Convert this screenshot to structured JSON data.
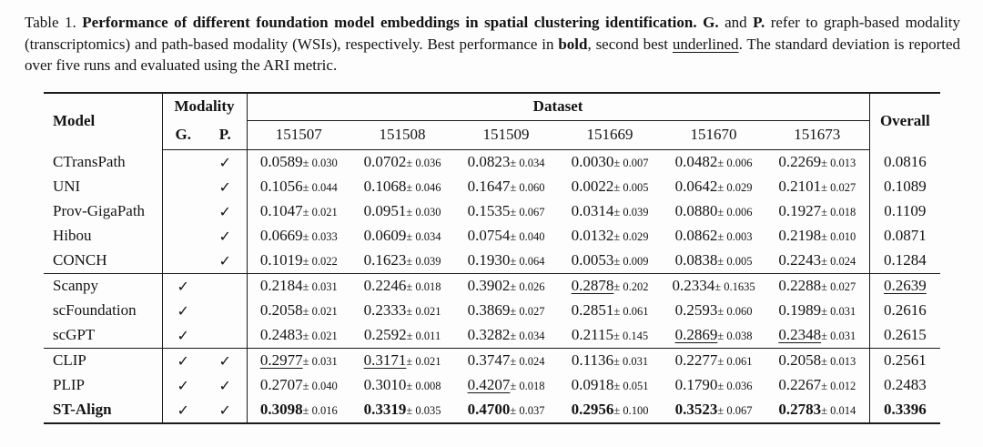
{
  "page": {
    "background": "#fdfdfd",
    "text_color": "#141414",
    "rule_color": "#1a1a1a"
  },
  "caption": {
    "label": "Table 1. ",
    "title": "Performance of different foundation model embeddings in spatial clustering identification. ",
    "g_abbrev": "G.",
    "and_word": " and ",
    "p_abbrev": "P.",
    "body1": " refer to graph-based modality (transcriptomics) and path-based modality (WSIs), respectively. Best performance in ",
    "bold_word": "bold",
    "body2": ", second best ",
    "underlined_word": "underlined",
    "body3": ". The standard deviation is reported over five runs and evaluated using the ARI metric."
  },
  "table": {
    "plus_minus": "±",
    "checkmark": "✓",
    "headers": {
      "model": "Model",
      "modality": "Modality",
      "g": "G.",
      "p": "P.",
      "dataset": "Dataset",
      "dataset_ids": [
        "151507",
        "151508",
        "151509",
        "151669",
        "151670",
        "151673"
      ],
      "overall": "Overall"
    },
    "groups": [
      {
        "name": "path-based-models",
        "rows": [
          {
            "model": "CTransPath",
            "bold": false,
            "g": false,
            "p": true,
            "values": [
              {
                "v": "0.0589",
                "sd": "0.030",
                "style": "n"
              },
              {
                "v": "0.0702",
                "sd": "0.036",
                "style": "n"
              },
              {
                "v": "0.0823",
                "sd": "0.034",
                "style": "n"
              },
              {
                "v": "0.0030",
                "sd": "0.007",
                "style": "n"
              },
              {
                "v": "0.0482",
                "sd": "0.006",
                "style": "n"
              },
              {
                "v": "0.2269",
                "sd": "0.013",
                "style": "n"
              }
            ],
            "overall": {
              "v": "0.0816",
              "style": "n"
            }
          },
          {
            "model": "UNI",
            "bold": false,
            "g": false,
            "p": true,
            "values": [
              {
                "v": "0.1056",
                "sd": "0.044",
                "style": "n"
              },
              {
                "v": "0.1068",
                "sd": "0.046",
                "style": "n"
              },
              {
                "v": "0.1647",
                "sd": "0.060",
                "style": "n"
              },
              {
                "v": "0.0022",
                "sd": "0.005",
                "style": "n"
              },
              {
                "v": "0.0642",
                "sd": "0.029",
                "style": "n"
              },
              {
                "v": "0.2101",
                "sd": "0.027",
                "style": "n"
              }
            ],
            "overall": {
              "v": "0.1089",
              "style": "n"
            }
          },
          {
            "model": "Prov-GigaPath",
            "bold": false,
            "g": false,
            "p": true,
            "values": [
              {
                "v": "0.1047",
                "sd": "0.021",
                "style": "n"
              },
              {
                "v": "0.0951",
                "sd": "0.030",
                "style": "n"
              },
              {
                "v": "0.1535",
                "sd": "0.067",
                "style": "n"
              },
              {
                "v": "0.0314",
                "sd": "0.039",
                "style": "n"
              },
              {
                "v": "0.0880",
                "sd": "0.006",
                "style": "n"
              },
              {
                "v": "0.1927",
                "sd": "0.018",
                "style": "n"
              }
            ],
            "overall": {
              "v": "0.1109",
              "style": "n"
            }
          },
          {
            "model": "Hibou",
            "bold": false,
            "g": false,
            "p": true,
            "values": [
              {
                "v": "0.0669",
                "sd": "0.033",
                "style": "n"
              },
              {
                "v": "0.0609",
                "sd": "0.034",
                "style": "n"
              },
              {
                "v": "0.0754",
                "sd": "0.040",
                "style": "n"
              },
              {
                "v": "0.0132",
                "sd": "0.029",
                "style": "n"
              },
              {
                "v": "0.0862",
                "sd": "0.003",
                "style": "n"
              },
              {
                "v": "0.2198",
                "sd": "0.010",
                "style": "n"
              }
            ],
            "overall": {
              "v": "0.0871",
              "style": "n"
            }
          },
          {
            "model": "CONCH",
            "bold": false,
            "g": false,
            "p": true,
            "values": [
              {
                "v": "0.1019",
                "sd": "0.022",
                "style": "n"
              },
              {
                "v": "0.1623",
                "sd": "0.039",
                "style": "n"
              },
              {
                "v": "0.1930",
                "sd": "0.064",
                "style": "n"
              },
              {
                "v": "0.0053",
                "sd": "0.009",
                "style": "n"
              },
              {
                "v": "0.0838",
                "sd": "0.005",
                "style": "n"
              },
              {
                "v": "0.2243",
                "sd": "0.024",
                "style": "n"
              }
            ],
            "overall": {
              "v": "0.1284",
              "style": "n"
            }
          }
        ]
      },
      {
        "name": "graph-based-models",
        "rows": [
          {
            "model": "Scanpy",
            "bold": false,
            "g": true,
            "p": false,
            "values": [
              {
                "v": "0.2184",
                "sd": "0.031",
                "style": "n"
              },
              {
                "v": "0.2246",
                "sd": "0.018",
                "style": "n"
              },
              {
                "v": "0.3902",
                "sd": "0.026",
                "style": "n"
              },
              {
                "v": "0.2878",
                "sd": "0.202",
                "style": "u"
              },
              {
                "v": "0.2334",
                "sd": "0.1635",
                "style": "n"
              },
              {
                "v": "0.2288",
                "sd": "0.027",
                "style": "n"
              }
            ],
            "overall": {
              "v": "0.2639",
              "style": "u"
            }
          },
          {
            "model": "scFoundation",
            "bold": false,
            "g": true,
            "p": false,
            "values": [
              {
                "v": "0.2058",
                "sd": "0.021",
                "style": "n"
              },
              {
                "v": "0.2333",
                "sd": "0.021",
                "style": "n"
              },
              {
                "v": "0.3869",
                "sd": "0.027",
                "style": "n"
              },
              {
                "v": "0.2851",
                "sd": "0.061",
                "style": "n"
              },
              {
                "v": "0.2593",
                "sd": "0.060",
                "style": "n"
              },
              {
                "v": "0.1989",
                "sd": "0.031",
                "style": "n"
              }
            ],
            "overall": {
              "v": "0.2616",
              "style": "n"
            }
          },
          {
            "model": "scGPT",
            "bold": false,
            "g": true,
            "p": false,
            "values": [
              {
                "v": "0.2483",
                "sd": "0.021",
                "style": "n"
              },
              {
                "v": "0.2592",
                "sd": "0.011",
                "style": "n"
              },
              {
                "v": "0.3282",
                "sd": "0.034",
                "style": "n"
              },
              {
                "v": "0.2115",
                "sd": "0.145",
                "style": "n"
              },
              {
                "v": "0.2869",
                "sd": "0.038",
                "style": "u"
              },
              {
                "v": "0.2348",
                "sd": "0.031",
                "style": "u"
              }
            ],
            "overall": {
              "v": "0.2615",
              "style": "n"
            }
          }
        ]
      },
      {
        "name": "multimodal-models",
        "rows": [
          {
            "model": "CLIP",
            "bold": false,
            "g": true,
            "p": true,
            "values": [
              {
                "v": "0.2977",
                "sd": "0.031",
                "style": "u"
              },
              {
                "v": "0.3171",
                "sd": "0.021",
                "style": "u"
              },
              {
                "v": "0.3747",
                "sd": "0.024",
                "style": "n"
              },
              {
                "v": "0.1136",
                "sd": "0.031",
                "style": "n"
              },
              {
                "v": "0.2277",
                "sd": "0.061",
                "style": "n"
              },
              {
                "v": "0.2058",
                "sd": "0.013",
                "style": "n"
              }
            ],
            "overall": {
              "v": "0.2561",
              "style": "n"
            }
          },
          {
            "model": "PLIP",
            "bold": false,
            "g": true,
            "p": true,
            "values": [
              {
                "v": "0.2707",
                "sd": "0.040",
                "style": "n"
              },
              {
                "v": "0.3010",
                "sd": "0.008",
                "style": "n"
              },
              {
                "v": "0.4207",
                "sd": "0.018",
                "style": "u"
              },
              {
                "v": "0.0918",
                "sd": "0.051",
                "style": "n"
              },
              {
                "v": "0.1790",
                "sd": "0.036",
                "style": "n"
              },
              {
                "v": "0.2267",
                "sd": "0.012",
                "style": "n"
              }
            ],
            "overall": {
              "v": "0.2483",
              "style": "n"
            }
          },
          {
            "model": "ST-Align",
            "bold": true,
            "g": true,
            "p": true,
            "values": [
              {
                "v": "0.3098",
                "sd": "0.016",
                "style": "b"
              },
              {
                "v": "0.3319",
                "sd": "0.035",
                "style": "b"
              },
              {
                "v": "0.4700",
                "sd": "0.037",
                "style": "b"
              },
              {
                "v": "0.2956",
                "sd": "0.100",
                "style": "b"
              },
              {
                "v": "0.3523",
                "sd": "0.067",
                "style": "b"
              },
              {
                "v": "0.2783",
                "sd": "0.014",
                "style": "b"
              }
            ],
            "overall": {
              "v": "0.3396",
              "style": "b"
            }
          }
        ]
      }
    ]
  }
}
